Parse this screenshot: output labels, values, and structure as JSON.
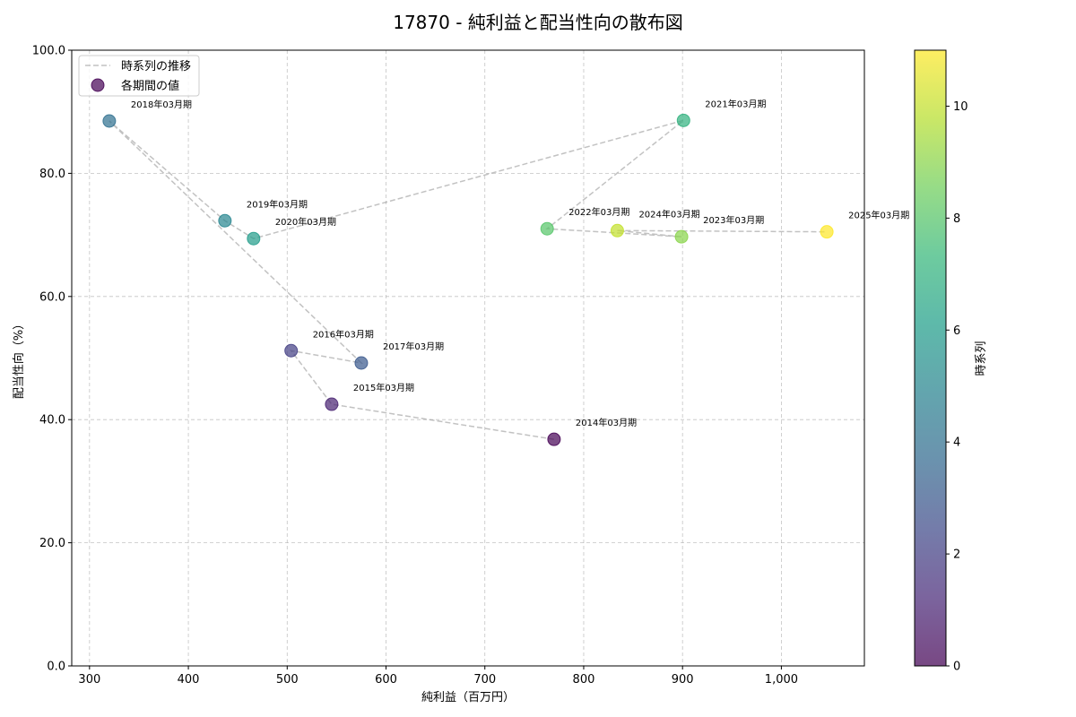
{
  "chart_data": {
    "type": "scatter",
    "title": "17870 - 純利益と配当性向の散布図",
    "xlabel": "純利益（百万円）",
    "ylabel": "配当性向（%）",
    "x_axis": {
      "range": [
        282,
        1084
      ],
      "ticks": [
        300,
        400,
        500,
        600,
        700,
        800,
        900,
        1000
      ],
      "tick_labels": [
        "300",
        "400",
        "500",
        "600",
        "700",
        "800",
        "900",
        "1,000"
      ]
    },
    "y_axis": {
      "range": [
        0,
        100
      ],
      "ticks": [
        0,
        20,
        40,
        60,
        80,
        100
      ],
      "tick_labels": [
        "0.0",
        "20.0",
        "40.0",
        "60.0",
        "80.0",
        "100.0"
      ]
    },
    "grid": true,
    "legend": {
      "position": "upper-left"
    },
    "series": [
      {
        "name": "時系列の推移",
        "type": "line",
        "color": "#999999"
      },
      {
        "name": "各期間の値",
        "type": "scatter"
      }
    ],
    "points": [
      {
        "label": "2014年03月期",
        "x": 770,
        "y": 36.8,
        "t": 0
      },
      {
        "label": "2015年03月期",
        "x": 545,
        "y": 42.5,
        "t": 1
      },
      {
        "label": "2016年03月期",
        "x": 504,
        "y": 51.2,
        "t": 2
      },
      {
        "label": "2017年03月期",
        "x": 575,
        "y": 49.2,
        "t": 3
      },
      {
        "label": "2018年03月期",
        "x": 320,
        "y": 88.5,
        "t": 4
      },
      {
        "label": "2019年03月期",
        "x": 437,
        "y": 72.3,
        "t": 5
      },
      {
        "label": "2020年03月期",
        "x": 466,
        "y": 69.4,
        "t": 6
      },
      {
        "label": "2021年03月期",
        "x": 901,
        "y": 88.6,
        "t": 7
      },
      {
        "label": "2022年03月期",
        "x": 763,
        "y": 71.0,
        "t": 8
      },
      {
        "label": "2023年03月期",
        "x": 899,
        "y": 69.7,
        "t": 9
      },
      {
        "label": "2024年03月期",
        "x": 834,
        "y": 70.7,
        "t": 10
      },
      {
        "label": "2025年03月期",
        "x": 1046,
        "y": 70.5,
        "t": 11
      }
    ],
    "colorbar": {
      "label": "時系列",
      "colormap": "viridis",
      "range": [
        0,
        11
      ],
      "ticks": [
        0,
        2,
        4,
        6,
        8,
        10
      ],
      "tick_labels": [
        "0",
        "2",
        "4",
        "6",
        "8",
        "10"
      ],
      "colors": [
        "#440154",
        "#482878",
        "#3e4989",
        "#31688e",
        "#26828e",
        "#1f9e89",
        "#35b779",
        "#6ece58",
        "#b5de2b",
        "#fde725"
      ]
    }
  }
}
